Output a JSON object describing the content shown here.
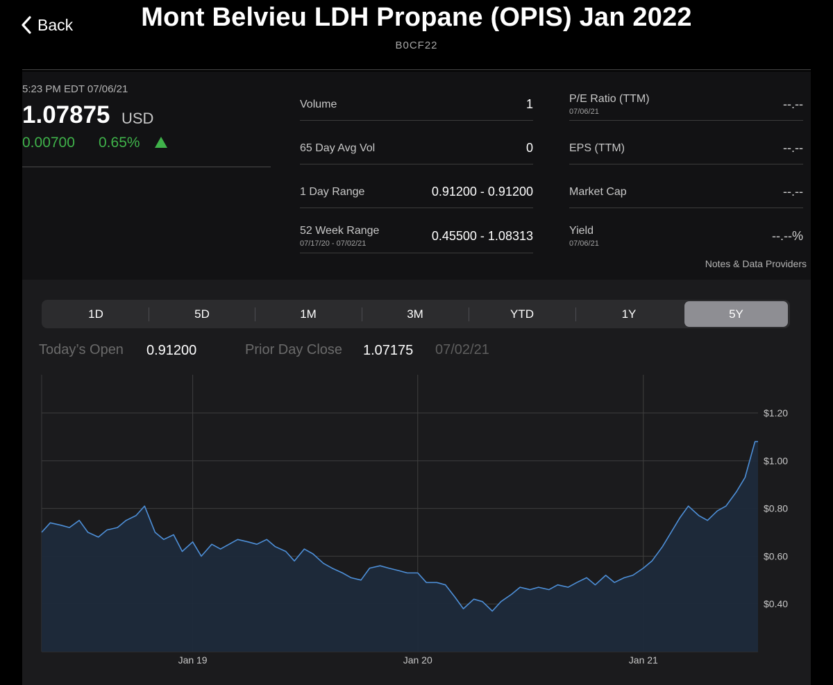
{
  "header": {
    "back_label": "Back",
    "title": "Mont Belvieu LDH Propane (OPIS) Jan 2022",
    "symbol": "B0CF22"
  },
  "quote": {
    "timestamp": "5:23 PM EDT 07/06/21",
    "price": "1.07875",
    "currency": "USD",
    "change": "0.00700",
    "change_pct": "0.65%",
    "direction": "up",
    "up_color": "#3fb24a"
  },
  "stats_left": [
    {
      "label": "Volume",
      "sub": "",
      "value": "1"
    },
    {
      "label": "65 Day Avg Vol",
      "sub": "",
      "value": "0"
    },
    {
      "label": "1 Day Range",
      "sub": "",
      "value": "0.91200 - 0.91200"
    },
    {
      "label": "52 Week Range",
      "sub": "07/17/20 - 07/02/21",
      "value": "0.45500 - 1.08313"
    }
  ],
  "stats_right": [
    {
      "label": "P/E Ratio (TTM)",
      "sub": "07/06/21",
      "value": "--.--"
    },
    {
      "label": "EPS (TTM)",
      "sub": "",
      "value": "--.--"
    },
    {
      "label": "Market Cap",
      "sub": "",
      "value": "--.--"
    },
    {
      "label": "Yield",
      "sub": "07/06/21",
      "value": "--.--%"
    }
  ],
  "notes_link": "Notes & Data Providers",
  "range_tabs": [
    {
      "label": "1D",
      "active": false
    },
    {
      "label": "5D",
      "active": false
    },
    {
      "label": "1M",
      "active": false
    },
    {
      "label": "3M",
      "active": false
    },
    {
      "label": "YTD",
      "active": false
    },
    {
      "label": "1Y",
      "active": false
    },
    {
      "label": "5Y",
      "active": true
    }
  ],
  "session": {
    "open_label": "Today’s Open",
    "open_value": "0.91200",
    "prior_close_label": "Prior Day Close",
    "prior_close_value": "1.07175",
    "prior_close_date": "07/02/21"
  },
  "chart_data": {
    "type": "area",
    "title": "",
    "xlabel": "",
    "ylabel": "",
    "x_ticks": [
      "Jan 19",
      "Jan 20",
      "Jan 21"
    ],
    "y_ticks": [
      "$0.40",
      "$0.60",
      "$0.80",
      "$1.00",
      "$1.20"
    ],
    "ylim": [
      0.2,
      1.36
    ],
    "xlim": [
      "2018-05-01",
      "2021-07-06"
    ],
    "grid": true,
    "line_color": "#4e90d9",
    "fill_color": "#1d2a3b",
    "series": [
      {
        "x": [
          "2018-05-01",
          "2018-05-15",
          "2018-06-01",
          "2018-06-15",
          "2018-07-01",
          "2018-07-15",
          "2018-08-01",
          "2018-08-15",
          "2018-09-01",
          "2018-09-15",
          "2018-10-01",
          "2018-10-15",
          "2018-11-01",
          "2018-11-15",
          "2018-12-01",
          "2018-12-15",
          "2019-01-01",
          "2019-01-15",
          "2019-02-01",
          "2019-02-15",
          "2019-03-01",
          "2019-03-15",
          "2019-04-01",
          "2019-04-15",
          "2019-05-01",
          "2019-05-15",
          "2019-06-01",
          "2019-06-15",
          "2019-07-01",
          "2019-07-15",
          "2019-08-01",
          "2019-08-15",
          "2019-09-01",
          "2019-09-15",
          "2019-10-01",
          "2019-10-15",
          "2019-11-01",
          "2019-11-15",
          "2019-12-01",
          "2019-12-15",
          "2020-01-01",
          "2020-01-15",
          "2020-02-01",
          "2020-02-15",
          "2020-03-01",
          "2020-03-15",
          "2020-04-01",
          "2020-04-15",
          "2020-05-01",
          "2020-05-15",
          "2020-06-01",
          "2020-06-15",
          "2020-07-01",
          "2020-07-15",
          "2020-08-01",
          "2020-08-15",
          "2020-09-01",
          "2020-09-15",
          "2020-10-01",
          "2020-10-15",
          "2020-11-01",
          "2020-11-15",
          "2020-12-01",
          "2020-12-15",
          "2021-01-01",
          "2021-01-15",
          "2021-02-01",
          "2021-02-15",
          "2021-03-01",
          "2021-03-15",
          "2021-04-01",
          "2021-04-15",
          "2021-05-01",
          "2021-05-15",
          "2021-06-01",
          "2021-06-15",
          "2021-07-01",
          "2021-07-06"
        ],
        "y": [
          0.7,
          0.74,
          0.73,
          0.72,
          0.75,
          0.7,
          0.68,
          0.71,
          0.72,
          0.75,
          0.77,
          0.81,
          0.7,
          0.67,
          0.69,
          0.62,
          0.66,
          0.6,
          0.65,
          0.63,
          0.65,
          0.67,
          0.66,
          0.65,
          0.67,
          0.64,
          0.62,
          0.58,
          0.63,
          0.61,
          0.57,
          0.55,
          0.53,
          0.51,
          0.5,
          0.55,
          0.56,
          0.55,
          0.54,
          0.53,
          0.53,
          0.49,
          0.49,
          0.48,
          0.43,
          0.38,
          0.42,
          0.41,
          0.37,
          0.41,
          0.44,
          0.47,
          0.46,
          0.47,
          0.46,
          0.48,
          0.47,
          0.49,
          0.51,
          0.48,
          0.52,
          0.49,
          0.51,
          0.52,
          0.55,
          0.58,
          0.64,
          0.7,
          0.76,
          0.81,
          0.77,
          0.75,
          0.79,
          0.81,
          0.87,
          0.93,
          1.08,
          1.08
        ]
      }
    ]
  }
}
